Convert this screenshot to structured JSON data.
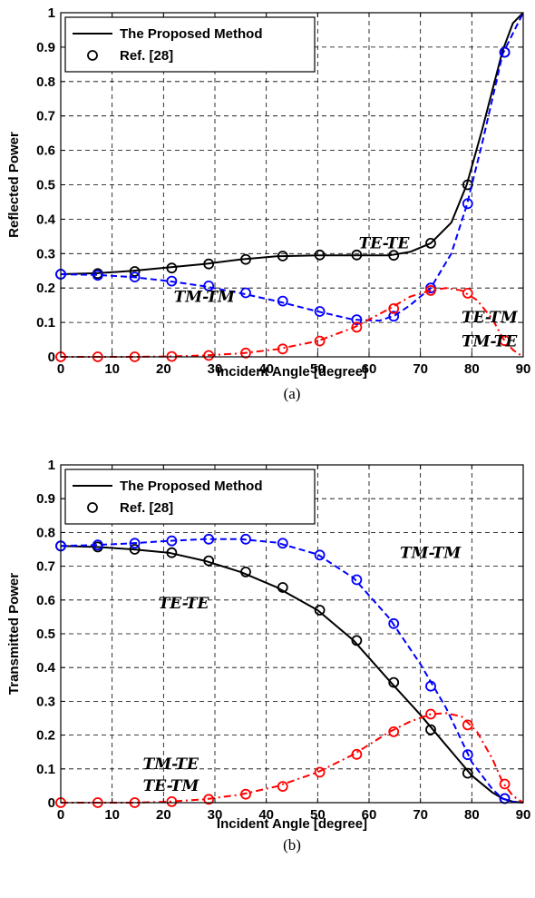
{
  "chart_data": [
    {
      "type": "line",
      "caption": "(a)",
      "xlabel": "Incident Angle [degree]",
      "ylabel": "Reflected Power",
      "xlim": [
        0,
        90
      ],
      "ylim": [
        0,
        1
      ],
      "xticks": [
        0,
        10,
        20,
        30,
        40,
        50,
        60,
        70,
        80,
        90
      ],
      "yticks": [
        0,
        0.1,
        0.2,
        0.3,
        0.4,
        0.5,
        0.6,
        0.7,
        0.8,
        0.9,
        1
      ],
      "grid": true,
      "legend": {
        "placement": "top-left",
        "entries": [
          {
            "label": "The Proposed Method",
            "marker": "solid-line"
          },
          {
            "label": "Ref. [28]",
            "marker": "circle"
          }
        ]
      },
      "series": [
        {
          "label": "TE-TE",
          "color": "#000000",
          "style": "solid",
          "line": {
            "x": [
              0,
              7,
              14,
              21,
              28,
              35,
              42,
              50,
              57,
              64,
              68,
              72,
              76,
              79,
              82,
              86,
              88,
              90
            ],
            "y": [
              0.24,
              0.243,
              0.25,
              0.26,
              0.27,
              0.283,
              0.292,
              0.295,
              0.295,
              0.295,
              0.305,
              0.33,
              0.39,
              0.5,
              0.66,
              0.89,
              0.97,
              1.0
            ]
          },
          "ref": {
            "x": [
              0,
              7.2,
              14.4,
              21.6,
              28.8,
              36,
              43.2,
              50.4,
              57.6,
              64.8,
              72,
              79.2,
              86.4
            ],
            "y": [
              0.24,
              0.242,
              0.248,
              0.258,
              0.27,
              0.283,
              0.293,
              0.296,
              0.296,
              0.295,
              0.33,
              0.5,
              0.885
            ]
          }
        },
        {
          "label": "TM-TM",
          "color": "#0000ff",
          "style": "dashed",
          "line": {
            "x": [
              0,
              7,
              14,
              21,
              28,
              35,
              42,
              50,
              57,
              62,
              65,
              68,
              72,
              76,
              79,
              82,
              86,
              90
            ],
            "y": [
              0.24,
              0.238,
              0.232,
              0.22,
              0.205,
              0.185,
              0.162,
              0.132,
              0.108,
              0.105,
              0.12,
              0.15,
              0.2,
              0.3,
              0.44,
              0.62,
              0.88,
              1.0
            ]
          },
          "ref": {
            "x": [
              0,
              7.2,
              14.4,
              21.6,
              28.8,
              36,
              43.2,
              50.4,
              57.6,
              64.8,
              72,
              79.2,
              86.4
            ],
            "y": [
              0.24,
              0.237,
              0.232,
              0.22,
              0.206,
              0.186,
              0.162,
              0.132,
              0.108,
              0.118,
              0.2,
              0.445,
              0.885
            ]
          }
        },
        {
          "label": "TE-TM / TM-TE",
          "color": "#ff0000",
          "style": "dash-dot",
          "line": {
            "x": [
              0,
              14,
              21,
              28,
              35,
              42,
              50,
              57,
              64,
              68,
              72,
              75,
              78,
              81,
              84,
              86,
              88,
              90
            ],
            "y": [
              0,
              0,
              0.001,
              0.004,
              0.01,
              0.022,
              0.046,
              0.085,
              0.14,
              0.175,
              0.193,
              0.2,
              0.193,
              0.165,
              0.11,
              0.055,
              0.02,
              0
            ]
          },
          "ref": {
            "x": [
              0,
              7.2,
              14.4,
              21.6,
              28.8,
              36,
              43.2,
              50.4,
              57.6,
              64.8,
              72,
              79.2,
              86.4
            ],
            "y": [
              0,
              0,
              0,
              0.001,
              0.004,
              0.011,
              0.023,
              0.046,
              0.086,
              0.14,
              0.193,
              0.185,
              0.047
            ]
          }
        }
      ],
      "annotations": [
        {
          "text": "TE-TE",
          "x": 58,
          "y": 0.315
        },
        {
          "text": "TM-TM",
          "x": 22,
          "y": 0.16
        },
        {
          "text": "TE-TM",
          "x": 78,
          "y": 0.1
        },
        {
          "text": "TM-TE",
          "x": 78,
          "y": 0.03
        }
      ]
    },
    {
      "type": "line",
      "caption": "(b)",
      "xlabel": "Incident Angle [degree]",
      "ylabel": "Transmitted Power",
      "xlim": [
        0,
        90
      ],
      "ylim": [
        0,
        1
      ],
      "xticks": [
        0,
        10,
        20,
        30,
        40,
        50,
        60,
        70,
        80,
        90
      ],
      "yticks": [
        0,
        0.1,
        0.2,
        0.3,
        0.4,
        0.5,
        0.6,
        0.7,
        0.8,
        0.9,
        1
      ],
      "grid": true,
      "legend": {
        "placement": "top-left",
        "entries": [
          {
            "label": "The Proposed Method",
            "marker": "solid-line"
          },
          {
            "label": "Ref. [28]",
            "marker": "circle"
          }
        ]
      },
      "series": [
        {
          "label": "TE-TE",
          "color": "#000000",
          "style": "solid",
          "line": {
            "x": [
              0,
              7,
              14,
              21,
              28,
              35,
              42,
              50,
              57,
              64,
              70,
              75,
              80,
              84,
              86,
              88,
              90
            ],
            "y": [
              0.76,
              0.757,
              0.75,
              0.74,
              0.716,
              0.683,
              0.638,
              0.57,
              0.48,
              0.36,
              0.26,
              0.17,
              0.08,
              0.03,
              0.012,
              0.003,
              0
            ]
          },
          "ref": {
            "x": [
              0,
              7.2,
              14.4,
              21.6,
              28.8,
              36,
              43.2,
              50.4,
              57.6,
              64.8,
              72,
              79.2,
              86.4
            ],
            "y": [
              0.76,
              0.757,
              0.75,
              0.74,
              0.716,
              0.683,
              0.637,
              0.57,
              0.48,
              0.356,
              0.216,
              0.087,
              0.012
            ]
          }
        },
        {
          "label": "TM-TM",
          "color": "#0000ff",
          "style": "dashed",
          "line": {
            "x": [
              0,
              7,
              14,
              21,
              28,
              35,
              42,
              50,
              57,
              64,
              70,
              75,
              80,
              84,
              86,
              88,
              90
            ],
            "y": [
              0.76,
              0.763,
              0.768,
              0.775,
              0.78,
              0.78,
              0.77,
              0.735,
              0.665,
              0.545,
              0.41,
              0.28,
              0.12,
              0.04,
              0.012,
              0.002,
              0
            ]
          },
          "ref": {
            "x": [
              0,
              7.2,
              14.4,
              21.6,
              28.8,
              36,
              43.2,
              50.4,
              57.6,
              64.8,
              72,
              79.2,
              86.4
            ],
            "y": [
              0.76,
              0.763,
              0.768,
              0.775,
              0.78,
              0.78,
              0.768,
              0.733,
              0.66,
              0.53,
              0.345,
              0.142,
              0.012
            ]
          }
        },
        {
          "label": "TM-TE / TE-TM",
          "color": "#ff0000",
          "style": "dash-dot",
          "line": {
            "x": [
              0,
              14,
              21,
              28,
              35,
              42,
              50,
              57,
              64,
              68,
              72,
              75,
              78,
              81,
              84,
              86,
              88,
              90
            ],
            "y": [
              0,
              0,
              0.003,
              0.01,
              0.024,
              0.048,
              0.09,
              0.143,
              0.21,
              0.24,
              0.262,
              0.265,
              0.255,
              0.21,
              0.13,
              0.06,
              0.02,
              0
            ]
          },
          "ref": {
            "x": [
              0,
              7.2,
              14.4,
              21.6,
              28.8,
              36,
              43.2,
              50.4,
              57.6,
              64.8,
              72,
              79.2,
              86.4
            ],
            "y": [
              0,
              0,
              0,
              0.003,
              0.01,
              0.025,
              0.048,
              0.09,
              0.143,
              0.21,
              0.262,
              0.23,
              0.055
            ]
          }
        }
      ],
      "annotations": [
        {
          "text": "TM-TM",
          "x": 66,
          "y": 0.725
        },
        {
          "text": "TE-TE",
          "x": 19,
          "y": 0.575
        },
        {
          "text": "TM-TE",
          "x": 16,
          "y": 0.1
        },
        {
          "text": "TE-TM",
          "x": 16,
          "y": 0.035
        }
      ]
    }
  ]
}
